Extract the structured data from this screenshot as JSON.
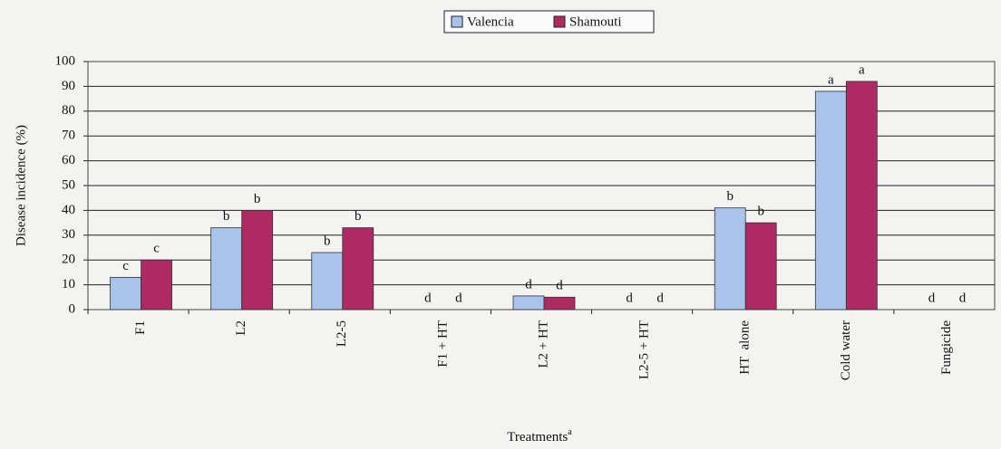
{
  "chart_data": {
    "type": "bar",
    "y_label": "Disease incidence (%)",
    "x_label": {
      "text": "Treatments",
      "superscript": "a"
    },
    "categories": [
      "F1",
      "L2",
      "L2-5",
      "F1 + HT",
      "L2 + HT",
      "L2-5 + HT",
      "HT  alone",
      "Cold water",
      "Fungicide"
    ],
    "series": [
      {
        "name": "Valencia",
        "color": "#a9c4ea",
        "values": [
          13,
          33,
          23,
          0,
          5.5,
          0,
          41,
          88,
          0
        ],
        "letters": [
          "c",
          "b",
          "b",
          "d",
          "d",
          "d",
          "b",
          "a",
          "d"
        ]
      },
      {
        "name": "Shamouti",
        "color": "#ad2a62",
        "values": [
          20,
          40,
          33,
          0,
          5,
          0,
          35,
          92,
          0
        ],
        "letters": [
          "c",
          "b",
          "b",
          "d",
          "d",
          "d",
          "b",
          "a",
          "d"
        ]
      }
    ],
    "ylim": [
      0,
      100
    ],
    "yticks": [
      0,
      10,
      20,
      30,
      40,
      50,
      60,
      70,
      80,
      90,
      100
    ],
    "grid": true,
    "legend": "top"
  }
}
